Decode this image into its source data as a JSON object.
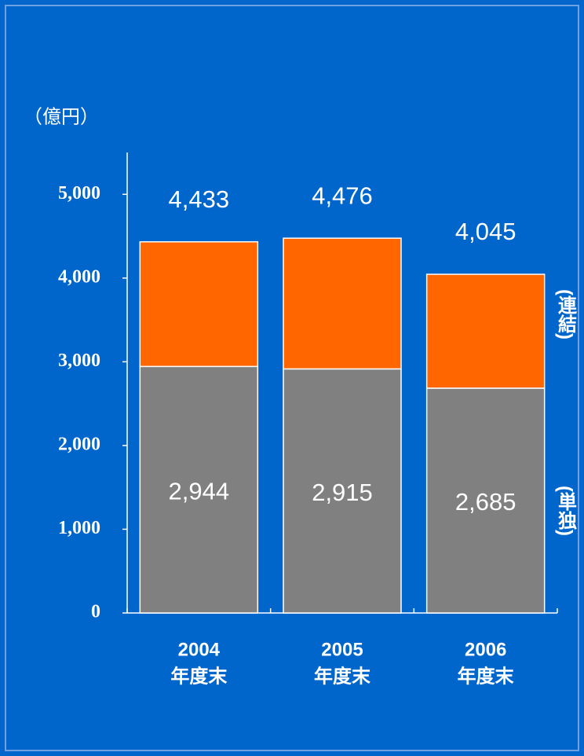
{
  "chart_data": {
    "type": "stacked_bar",
    "y_unit": "（億円）",
    "categories": [
      [
        "2004",
        "年度末"
      ],
      [
        "2005",
        "年度末"
      ],
      [
        "2006",
        "年度末"
      ]
    ],
    "series": [
      {
        "name": "(単独)",
        "color": "#808080",
        "values": [
          2944,
          2915,
          2685
        ],
        "value_labels": [
          "2,944",
          "2,915",
          "2,685"
        ]
      },
      {
        "name": "(連結)",
        "color": "#ff6600",
        "values": [
          1489,
          1561,
          1360
        ]
      }
    ],
    "total_labels": [
      "4,433",
      "4,476",
      "4,045"
    ],
    "ylim": [
      0,
      5500
    ],
    "yticks": [
      0,
      {
        "value": 1000,
        "label": "1,000"
      },
      {
        "value": 2000,
        "label": "2,000"
      },
      {
        "value": 3000,
        "label": "3,000"
      },
      {
        "value": 4000,
        "label": "4,000"
      },
      {
        "value": 5000,
        "label": "5,000"
      }
    ]
  }
}
